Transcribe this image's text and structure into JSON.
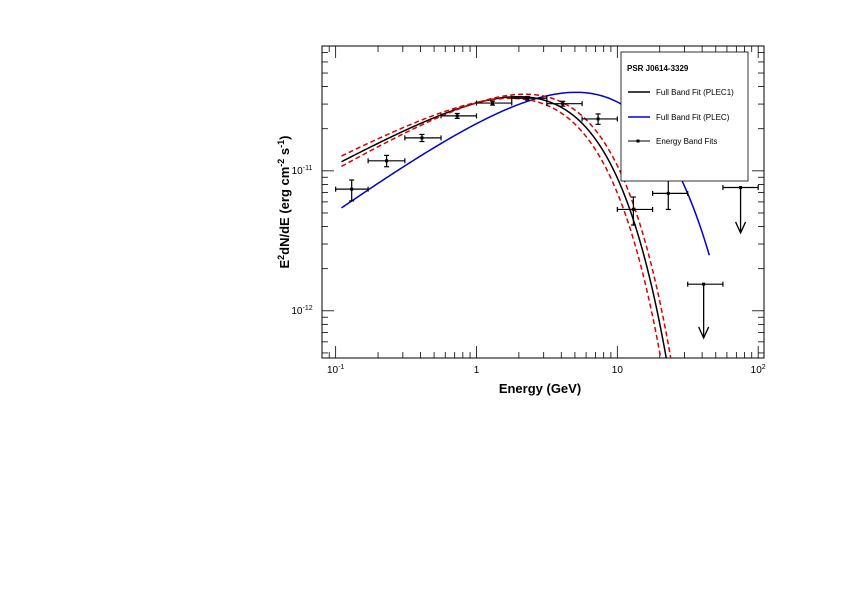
{
  "chart_data": {
    "type": "scatter",
    "x_scale": "log",
    "y_scale": "log",
    "xlim": [
      0.08,
      110
    ],
    "ylim": [
      4.6e-13,
      7.8e-11
    ],
    "xlabel": "Energy (GeV)",
    "ylabel": {
      "base": "E",
      "sup1": "2",
      "mid": "dN/dE (erg cm",
      "sup2": "-2",
      "mid2": " s",
      "sup3": "-1",
      "end": ")"
    },
    "x_ticks": [
      {
        "value": 0.1,
        "base": "10",
        "exp": "-1"
      },
      {
        "value": 1,
        "base": "1",
        "exp": ""
      },
      {
        "value": 10,
        "base": "10",
        "exp": ""
      },
      {
        "value": 100,
        "base": "10",
        "exp": "2"
      }
    ],
    "y_ticks": [
      {
        "value": 1e-12,
        "base": "10",
        "exp": "-12"
      },
      {
        "value": 1e-11,
        "base": "10",
        "exp": "-11"
      }
    ],
    "legend": {
      "placement": "top-right",
      "title": "PSR J0614-3329",
      "entries": [
        {
          "label": "Full Band Fit (PLEC1)",
          "series": "plec1"
        },
        {
          "label": "Full Band Fit (PLEC)",
          "series": "plec"
        },
        {
          "label": "Energy Band Fits",
          "series": "bands"
        }
      ]
    },
    "colors": {
      "plec1": "#000000",
      "plec": "#0000dd",
      "band": "#dd0000",
      "points": "#000000"
    },
    "points": [
      {
        "x": 0.13,
        "xlo": 0.1,
        "xhi": 0.17,
        "y": 7.4e-12,
        "ylo": 6.1e-12,
        "yhi": 8.6e-12
      },
      {
        "x": 0.23,
        "xlo": 0.17,
        "xhi": 0.31,
        "y": 1.18e-11,
        "ylo": 1.07e-11,
        "yhi": 1.29e-11
      },
      {
        "x": 0.41,
        "xlo": 0.31,
        "xhi": 0.56,
        "y": 1.72e-11,
        "ylo": 1.62e-11,
        "yhi": 1.82e-11
      },
      {
        "x": 0.73,
        "xlo": 0.56,
        "xhi": 1.0,
        "y": 2.47e-11,
        "ylo": 2.37e-11,
        "yhi": 2.57e-11
      },
      {
        "x": 1.3,
        "xlo": 1.0,
        "xhi": 1.78,
        "y": 3.05e-11,
        "ylo": 2.95e-11,
        "yhi": 3.15e-11
      },
      {
        "x": 2.3,
        "xlo": 1.78,
        "xhi": 3.16,
        "y": 3.3e-11,
        "ylo": 3.2e-11,
        "yhi": 3.4e-11
      },
      {
        "x": 4.1,
        "xlo": 3.16,
        "xhi": 5.62,
        "y": 3.02e-11,
        "ylo": 2.9e-11,
        "yhi": 3.14e-11
      },
      {
        "x": 7.3,
        "xlo": 5.62,
        "xhi": 10.0,
        "y": 2.35e-11,
        "ylo": 2.15e-11,
        "yhi": 2.55e-11
      },
      {
        "x": 13.0,
        "xlo": 10.0,
        "xhi": 17.8,
        "y": 5.3e-12,
        "ylo": 4.1e-12,
        "yhi": 6.5e-12
      },
      {
        "x": 23.0,
        "xlo": 17.8,
        "xhi": 31.6,
        "y": 6.9e-12,
        "ylo": 5.3e-12,
        "yhi": 9e-12
      }
    ],
    "upper_limits": [
      {
        "x": 41.0,
        "xlo": 31.6,
        "xhi": 56.2,
        "y": 1.55e-12,
        "arrow_to": 6.4e-13
      },
      {
        "x": 75.0,
        "xlo": 56.2,
        "xhi": 100.0,
        "y": 7.6e-12,
        "arrow_to": 3.6e-12
      }
    ],
    "plec1_model": {
      "x_range": [
        0.11,
        23.5
      ],
      "norm": 3.35e-11,
      "gamma": 1.45,
      "ecut": 3.6,
      "e0": 2.4
    },
    "plec_model": {
      "x_range": [
        0.11,
        45
      ],
      "norm": 3.3e-11,
      "gamma": 1.28,
      "ecut": 5.8,
      "b": 0.8,
      "e0": 2.7
    },
    "band_upper": {
      "x_range": [
        0.11,
        25.5
      ],
      "norm": 3.52e-11,
      "gamma": 1.42,
      "ecut": 3.8,
      "e0": 2.4
    },
    "band_lower": {
      "x_range": [
        0.11,
        22.0
      ],
      "norm": 3.2e-11,
      "gamma": 1.48,
      "ecut": 3.35,
      "e0": 2.4
    }
  }
}
